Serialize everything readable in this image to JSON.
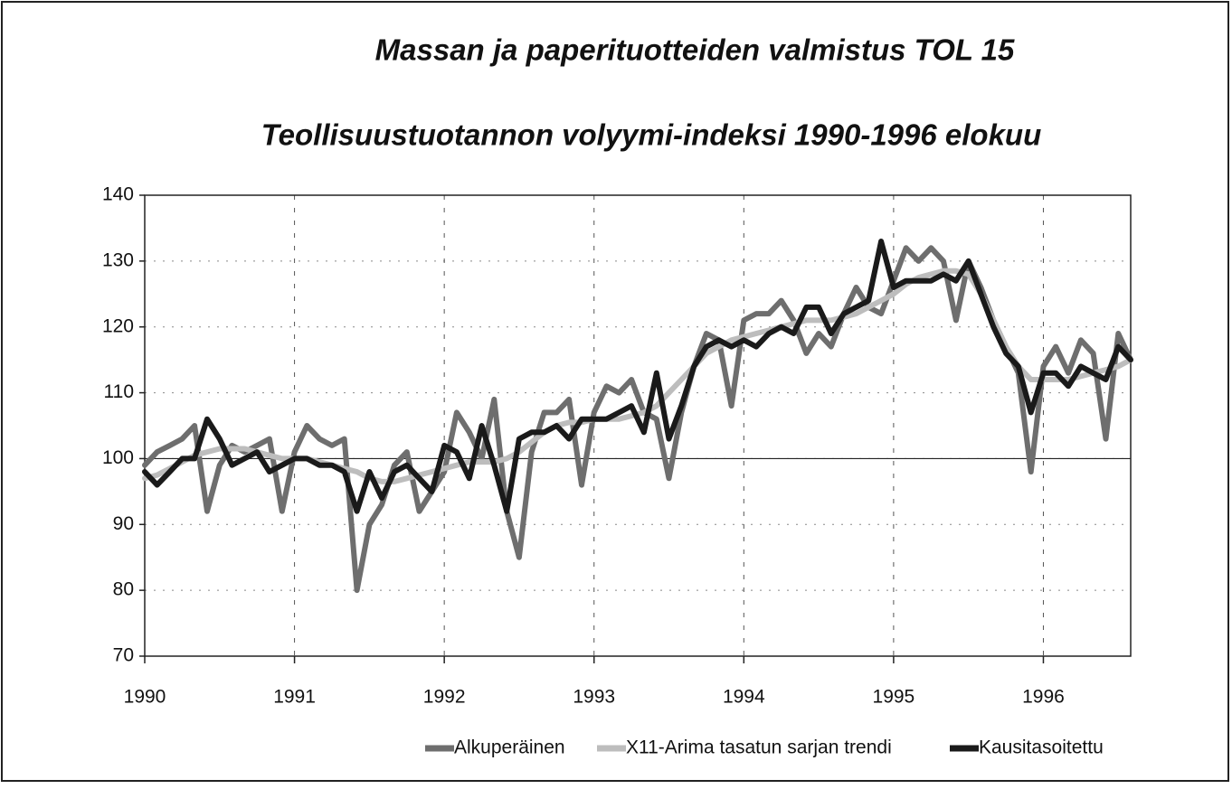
{
  "chart_data": {
    "type": "line",
    "title": "Massan ja paperituotteiden valmistus TOL 15",
    "subtitle": "Teollisuustuotannon volyymi-indeksi 1990-1996 elokuu",
    "x": [
      1990,
      1990.083,
      1990.167,
      1990.25,
      1990.333,
      1990.417,
      1990.5,
      1990.583,
      1990.667,
      1990.75,
      1990.833,
      1990.917,
      1991,
      1991.083,
      1991.167,
      1991.25,
      1991.333,
      1991.417,
      1991.5,
      1991.583,
      1991.667,
      1991.75,
      1991.833,
      1991.917,
      1992,
      1992.083,
      1992.167,
      1992.25,
      1992.333,
      1992.417,
      1992.5,
      1992.583,
      1992.667,
      1992.75,
      1992.833,
      1992.917,
      1993,
      1993.083,
      1993.167,
      1993.25,
      1993.333,
      1993.417,
      1993.5,
      1993.583,
      1993.667,
      1993.75,
      1993.833,
      1993.917,
      1994,
      1994.083,
      1994.167,
      1994.25,
      1994.333,
      1994.417,
      1994.5,
      1994.583,
      1994.667,
      1994.75,
      1994.833,
      1994.917,
      1995,
      1995.083,
      1995.167,
      1995.25,
      1995.333,
      1995.417,
      1995.5,
      1995.583,
      1995.667,
      1995.75,
      1995.833,
      1995.917,
      1996,
      1996.083,
      1996.167,
      1996.25,
      1996.333,
      1996.417,
      1996.5,
      1996.583
    ],
    "series": [
      {
        "name": "Alkuperäinen",
        "color": "#6e6e6e",
        "values": [
          99,
          101,
          102,
          103,
          105,
          92,
          99,
          102,
          101,
          102,
          103,
          92,
          101,
          105,
          103,
          102,
          103,
          80,
          90,
          93,
          99,
          101,
          92,
          95,
          98,
          107,
          104,
          100,
          109,
          92,
          85,
          101,
          107,
          107,
          109,
          96,
          107,
          111,
          110,
          112,
          107,
          106,
          97,
          107,
          114,
          119,
          118,
          108,
          121,
          122,
          122,
          124,
          121,
          116,
          119,
          117,
          122,
          126,
          123,
          122,
          127,
          132,
          130,
          132,
          130,
          121,
          130,
          126,
          121,
          117,
          113,
          98,
          114,
          117,
          113,
          118,
          116,
          103,
          119,
          115
        ]
      },
      {
        "name": "X11-Arima tasatun sarjan trendi",
        "color": "#bdbdbd",
        "values": [
          97,
          97.5,
          98.5,
          99.5,
          100.5,
          101,
          101.5,
          101.5,
          101.5,
          101,
          100.5,
          100,
          100,
          100,
          99.5,
          99,
          98.5,
          98,
          97,
          96.5,
          96.5,
          97,
          97.5,
          98,
          98.5,
          99,
          99.5,
          99.5,
          99.5,
          100,
          101,
          102.5,
          104,
          105,
          105.5,
          105.5,
          106,
          106,
          106,
          106.5,
          107,
          108,
          110,
          112,
          114,
          116,
          117,
          118,
          118.5,
          119,
          119.5,
          120,
          120.5,
          121,
          121,
          121,
          121.5,
          122,
          123,
          124,
          125,
          126.5,
          127.5,
          128,
          128.5,
          128.5,
          128,
          125,
          121,
          117,
          114,
          112,
          112,
          112,
          112,
          112.5,
          113,
          113.5,
          114,
          115
        ]
      },
      {
        "name": "Kausitasoitettu",
        "color": "#1a1a1a",
        "values": [
          98,
          96,
          98,
          100,
          100,
          106,
          103,
          99,
          100,
          101,
          98,
          99,
          100,
          100,
          99,
          99,
          98,
          92,
          98,
          94,
          98,
          99,
          97,
          95,
          102,
          101,
          97,
          105,
          99,
          92,
          103,
          104,
          104,
          105,
          103,
          106,
          106,
          106,
          107,
          108,
          104,
          113,
          103,
          108,
          114,
          117,
          118,
          117,
          118,
          117,
          119,
          120,
          119,
          123,
          123,
          119,
          122,
          123,
          124,
          133,
          126,
          127,
          127,
          127,
          128,
          127,
          130,
          125,
          120,
          116,
          114,
          107,
          113,
          113,
          111,
          114,
          113,
          112,
          117,
          115
        ]
      }
    ],
    "xlim": [
      1990,
      1996.583
    ],
    "xticks": [
      1990,
      1991,
      1992,
      1993,
      1994,
      1995,
      1996
    ],
    "ylim": [
      70,
      140
    ],
    "yticks": [
      70,
      80,
      90,
      100,
      110,
      120,
      130,
      140
    ],
    "reference_line": 100,
    "grid": true,
    "legend": "bottom"
  }
}
